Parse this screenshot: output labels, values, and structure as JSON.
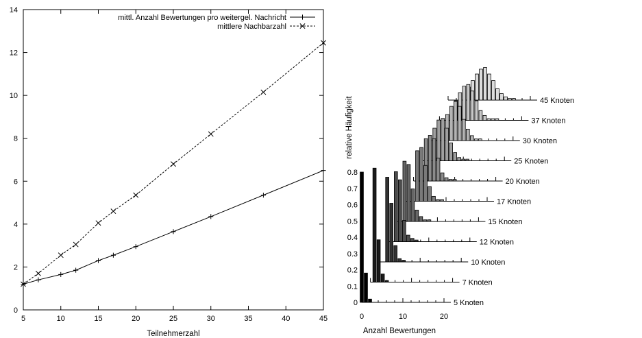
{
  "chart_data": [
    {
      "type": "line",
      "title": "",
      "xlabel": "Teilnehmerzahl",
      "ylabel": "",
      "xlim": [
        5,
        45
      ],
      "ylim": [
        0,
        14
      ],
      "xticks": [
        5,
        10,
        15,
        20,
        25,
        30,
        35,
        40,
        45
      ],
      "yticks": [
        0,
        2,
        4,
        6,
        8,
        10,
        12,
        14
      ],
      "grid": false,
      "legend_position": "top-right",
      "x": [
        5,
        7,
        10,
        12,
        15,
        17,
        20,
        25,
        30,
        37,
        45
      ],
      "series": [
        {
          "name": "mittl. Anzahl Bewertungen pro weitergel. Nachricht",
          "style": "solid",
          "marker": "+",
          "values": [
            1.2,
            1.4,
            1.65,
            1.85,
            2.3,
            2.55,
            2.95,
            3.65,
            4.35,
            5.35,
            6.5
          ]
        },
        {
          "name": "mittlere Nachbarzahl",
          "style": "dashed",
          "marker": "x",
          "values": [
            1.2,
            1.7,
            2.55,
            3.05,
            4.05,
            4.6,
            5.35,
            6.8,
            8.2,
            10.15,
            12.45
          ]
        }
      ]
    },
    {
      "type": "bar",
      "subtype": "3d-stacked-histograms",
      "xlabel": "Anzahl Bewertungen",
      "ylabel": "relative Häufigkeit",
      "xlim": [
        0,
        22
      ],
      "ylim": [
        0,
        0.8
      ],
      "xticks": [
        0,
        10,
        20
      ],
      "yticks": [
        0,
        0.1,
        0.2,
        0.3,
        0.4,
        0.5,
        0.6,
        0.7,
        0.8
      ],
      "series": [
        {
          "name": "5 Knoten",
          "x": [
            0,
            1,
            2
          ],
          "values": [
            0.8,
            0.18,
            0.02
          ]
        },
        {
          "name": "7 Knoten",
          "x": [
            1,
            2,
            3,
            4
          ],
          "values": [
            0.7,
            0.26,
            0.05,
            0.01
          ]
        },
        {
          "name": "10 Knoten",
          "x": [
            2,
            3,
            4,
            5,
            6
          ],
          "values": [
            0.52,
            0.36,
            0.1,
            0.02,
            0.01
          ]
        },
        {
          "name": "12 Knoten",
          "x": [
            2,
            3,
            4,
            5,
            6,
            7
          ],
          "values": [
            0.43,
            0.38,
            0.13,
            0.04,
            0.02,
            0.01
          ]
        },
        {
          "name": "15 Knoten",
          "x": [
            2,
            3,
            4,
            5,
            6,
            7,
            8
          ],
          "values": [
            0.37,
            0.35,
            0.2,
            0.07,
            0.03,
            0.01,
            0.01
          ]
        },
        {
          "name": "17 Knoten",
          "x": [
            3,
            4,
            5,
            6,
            7,
            8,
            9
          ],
          "values": [
            0.31,
            0.33,
            0.22,
            0.09,
            0.03,
            0.01,
            0.01
          ]
        },
        {
          "name": "20 Knoten",
          "x": [
            3,
            4,
            5,
            6,
            7,
            8,
            9,
            10
          ],
          "values": [
            0.26,
            0.28,
            0.26,
            0.14,
            0.05,
            0.02,
            0.01,
            0.01
          ]
        },
        {
          "name": "25 Knoten",
          "x": [
            3,
            4,
            5,
            6,
            7,
            8,
            9,
            10,
            11
          ],
          "values": [
            0.2,
            0.25,
            0.26,
            0.2,
            0.11,
            0.05,
            0.02,
            0.01,
            0.01
          ]
        },
        {
          "name": "30 Knoten",
          "x": [
            4,
            5,
            6,
            7,
            8,
            9,
            10,
            11,
            12
          ],
          "values": [
            0.16,
            0.21,
            0.24,
            0.21,
            0.13,
            0.07,
            0.03,
            0.01,
            0.01
          ]
        },
        {
          "name": "37 Knoten",
          "x": [
            4,
            5,
            6,
            7,
            8,
            9,
            10,
            11,
            12,
            13,
            14
          ],
          "values": [
            0.12,
            0.17,
            0.21,
            0.22,
            0.18,
            0.12,
            0.06,
            0.03,
            0.01,
            0.01,
            0.01
          ]
        },
        {
          "name": "45 Knoten",
          "x": [
            5,
            6,
            7,
            8,
            9,
            10,
            11,
            12,
            13,
            14,
            15,
            16
          ],
          "values": [
            0.08,
            0.12,
            0.16,
            0.19,
            0.2,
            0.16,
            0.12,
            0.07,
            0.04,
            0.02,
            0.01,
            0.01
          ]
        }
      ]
    }
  ]
}
